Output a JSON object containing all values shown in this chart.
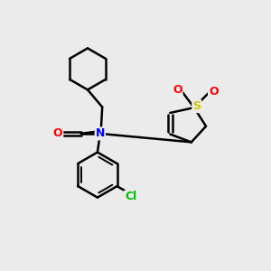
{
  "bg_color": "#ebebeb",
  "bond_color": "#000000",
  "bond_width": 1.8,
  "atom_colors": {
    "O": "#ff0000",
    "N": "#0000ff",
    "S": "#cccc00",
    "Cl": "#00bb00",
    "C": "#000000"
  },
  "font_size_atom": 9
}
